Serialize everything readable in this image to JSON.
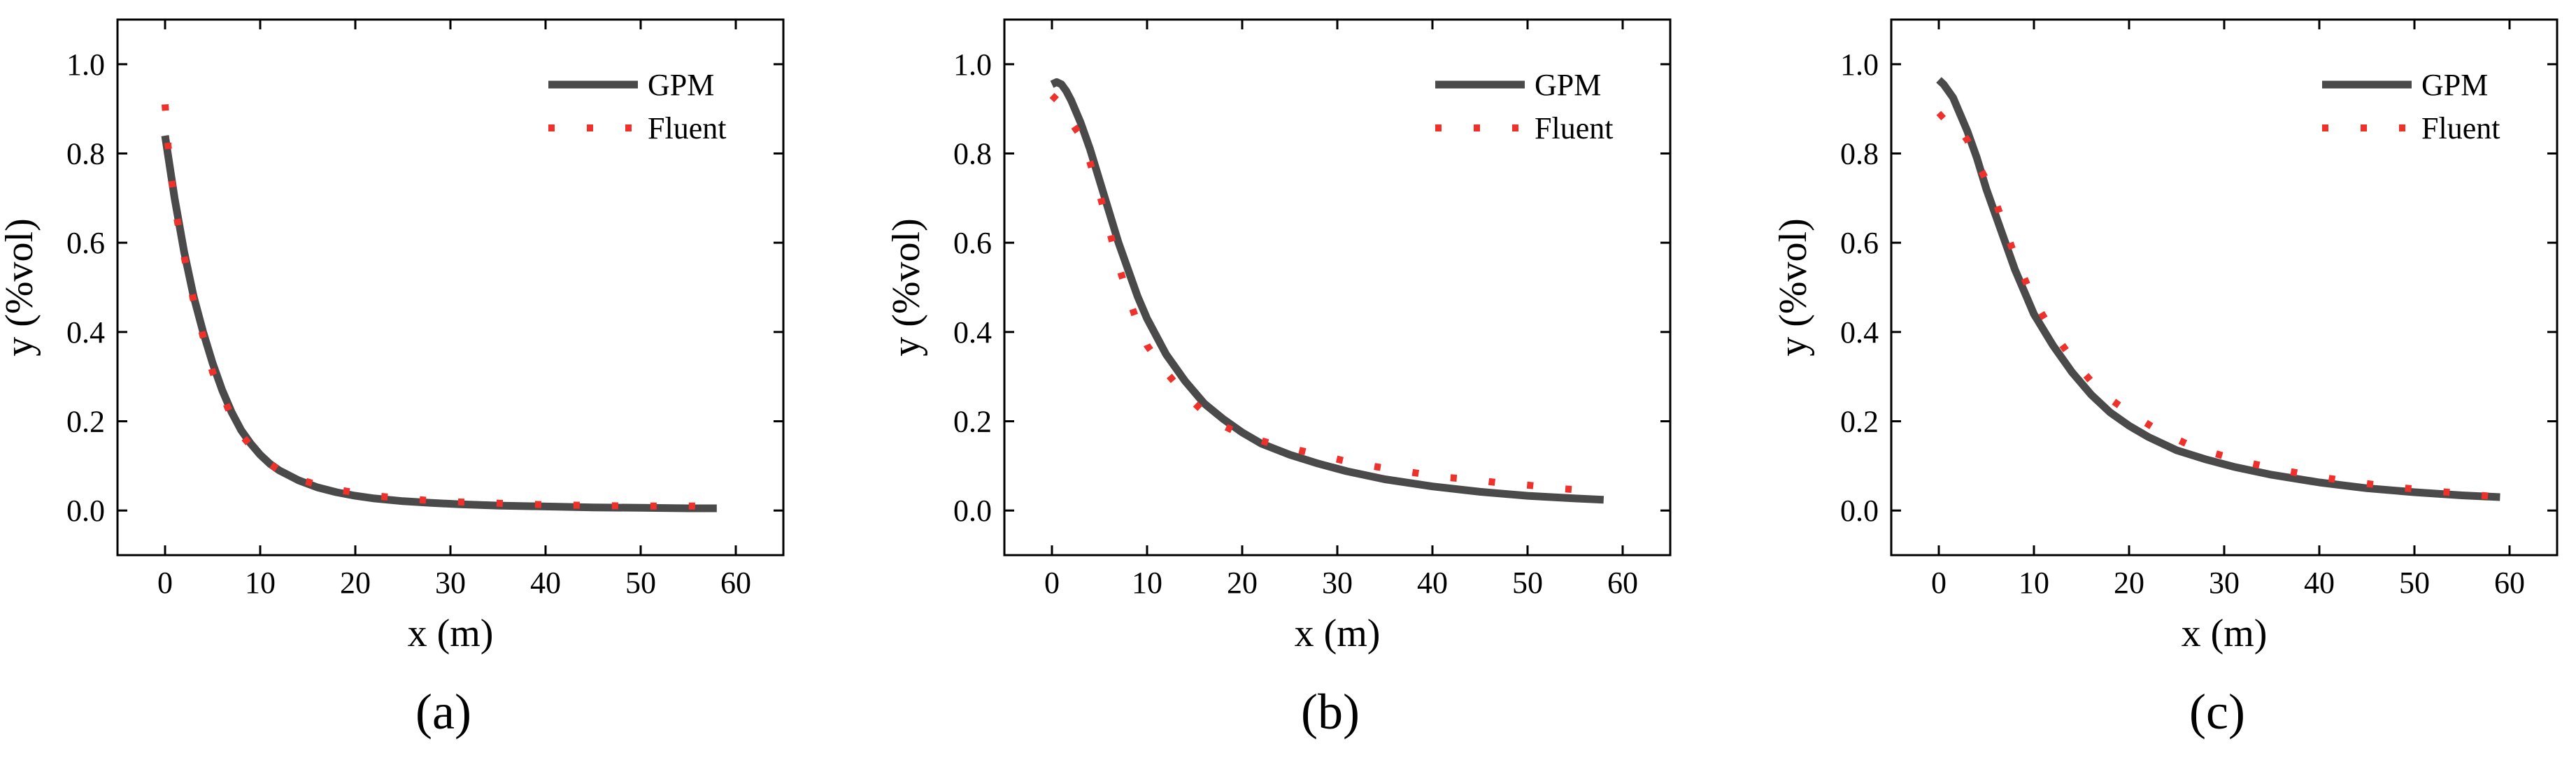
{
  "figure": {
    "colors": {
      "gpm": "#4a4a4a",
      "fluent": "#f0302a",
      "axis": "#000000"
    }
  },
  "chart_data": [
    {
      "type": "line",
      "panel_label": "(a)",
      "xlabel": "x (m)",
      "ylabel": "y (%vol)",
      "xlim": [
        -5,
        65
      ],
      "ylim": [
        -0.1,
        1.1
      ],
      "xticks": [
        0,
        10,
        20,
        30,
        40,
        50,
        60
      ],
      "xtick_labels": [
        "0",
        "10",
        "20",
        "30",
        "40",
        "50",
        "60"
      ],
      "yticks": [
        0.0,
        0.2,
        0.4,
        0.6,
        0.8,
        1.0
      ],
      "ytick_labels": [
        "0.0",
        "0.2",
        "0.4",
        "0.6",
        "0.8",
        "1.0"
      ],
      "legend": [
        "GPM",
        "Fluent"
      ],
      "legend_position": "top-right",
      "series": [
        {
          "name": "GPM",
          "style": "solid",
          "x": [
            0,
            0.5,
            1,
            1.5,
            2,
            3,
            4,
            5,
            6,
            7,
            8,
            9,
            10,
            11,
            12,
            14,
            16,
            18,
            20,
            22,
            25,
            28,
            31,
            35,
            40,
            45,
            50,
            55,
            58
          ],
          "y": [
            0.84,
            0.77,
            0.7,
            0.64,
            0.58,
            0.48,
            0.4,
            0.33,
            0.27,
            0.22,
            0.18,
            0.15,
            0.125,
            0.105,
            0.09,
            0.068,
            0.052,
            0.041,
            0.033,
            0.027,
            0.021,
            0.017,
            0.014,
            0.011,
            0.009,
            0.007,
            0.006,
            0.005,
            0.005
          ]
        },
        {
          "name": "Fluent",
          "style": "dotted",
          "x": [
            0,
            0.3,
            0.7,
            1.2,
            2,
            3,
            4,
            5,
            6,
            7,
            8,
            10,
            12,
            14,
            16,
            18,
            20,
            22,
            25,
            28,
            31,
            34,
            37,
            40,
            43,
            46,
            49,
            52,
            55,
            58
          ],
          "y": [
            0.91,
            0.82,
            0.74,
            0.66,
            0.57,
            0.47,
            0.39,
            0.31,
            0.26,
            0.21,
            0.17,
            0.12,
            0.09,
            0.07,
            0.058,
            0.047,
            0.04,
            0.033,
            0.027,
            0.022,
            0.019,
            0.017,
            0.015,
            0.013,
            0.012,
            0.011,
            0.01,
            0.01,
            0.01,
            0.01
          ]
        }
      ]
    },
    {
      "type": "line",
      "panel_label": "(b)",
      "xlabel": "x (m)",
      "ylabel": "y (%vol)",
      "xlim": [
        -5,
        65
      ],
      "ylim": [
        -0.1,
        1.1
      ],
      "xticks": [
        0,
        10,
        20,
        30,
        40,
        50,
        60
      ],
      "xtick_labels": [
        "0",
        "10",
        "20",
        "30",
        "40",
        "50",
        "60"
      ],
      "yticks": [
        0.0,
        0.2,
        0.4,
        0.6,
        0.8,
        1.0
      ],
      "ytick_labels": [
        "0.0",
        "0.2",
        "0.4",
        "0.6",
        "0.8",
        "1.0"
      ],
      "legend": [
        "GPM",
        "Fluent"
      ],
      "legend_position": "top-right",
      "series": [
        {
          "name": "GPM",
          "style": "solid",
          "x": [
            0,
            0.5,
            1,
            1.5,
            2,
            3,
            4,
            5,
            6,
            7,
            8,
            9,
            10,
            12,
            14,
            16,
            18,
            20,
            22,
            25,
            28,
            31,
            35,
            40,
            45,
            50,
            55,
            58
          ],
          "y": [
            0.955,
            0.96,
            0.955,
            0.94,
            0.92,
            0.87,
            0.81,
            0.74,
            0.67,
            0.6,
            0.54,
            0.48,
            0.43,
            0.35,
            0.29,
            0.24,
            0.205,
            0.175,
            0.15,
            0.125,
            0.105,
            0.088,
            0.07,
            0.054,
            0.042,
            0.033,
            0.027,
            0.024
          ]
        },
        {
          "name": "Fluent",
          "style": "dotted",
          "x": [
            0,
            0.5,
            1,
            2,
            3,
            4,
            5,
            6,
            7,
            8,
            9,
            10,
            12,
            14,
            16,
            18,
            20,
            23,
            26,
            29,
            32,
            35,
            38,
            41,
            44,
            47,
            50,
            53,
            56
          ],
          "y": [
            0.93,
            0.92,
            0.9,
            0.87,
            0.84,
            0.78,
            0.71,
            0.63,
            0.55,
            0.48,
            0.42,
            0.37,
            0.31,
            0.26,
            0.22,
            0.19,
            0.17,
            0.15,
            0.135,
            0.12,
            0.105,
            0.095,
            0.085,
            0.075,
            0.07,
            0.062,
            0.057,
            0.05,
            0.045
          ]
        }
      ]
    },
    {
      "type": "line",
      "panel_label": "(c)",
      "xlabel": "x (m)",
      "ylabel": "y (%vol)",
      "xlim": [
        -5,
        65
      ],
      "ylim": [
        -0.1,
        1.1
      ],
      "xticks": [
        0,
        10,
        20,
        30,
        40,
        50,
        60
      ],
      "xtick_labels": [
        "0",
        "10",
        "20",
        "30",
        "40",
        "50",
        "60"
      ],
      "yticks": [
        0.0,
        0.2,
        0.4,
        0.6,
        0.8,
        1.0
      ],
      "ytick_labels": [
        "0.0",
        "0.2",
        "0.4",
        "0.6",
        "0.8",
        "1.0"
      ],
      "legend": [
        "GPM",
        "Fluent"
      ],
      "legend_position": "top-right",
      "series": [
        {
          "name": "GPM",
          "style": "solid",
          "x": [
            0,
            0.5,
            1,
            1.5,
            2,
            3,
            4,
            5,
            6,
            7,
            8,
            9,
            10,
            12,
            14,
            16,
            18,
            20,
            22,
            25,
            28,
            31,
            35,
            40,
            45,
            50,
            55,
            59
          ],
          "y": [
            0.965,
            0.955,
            0.94,
            0.925,
            0.9,
            0.85,
            0.79,
            0.72,
            0.66,
            0.6,
            0.54,
            0.49,
            0.44,
            0.37,
            0.31,
            0.26,
            0.22,
            0.19,
            0.165,
            0.135,
            0.115,
            0.098,
            0.08,
            0.063,
            0.05,
            0.041,
            0.034,
            0.03
          ]
        },
        {
          "name": "Fluent",
          "style": "dotted",
          "x": [
            0,
            0.5,
            1,
            2,
            3,
            4,
            5,
            6,
            7,
            8,
            9,
            10,
            12,
            14,
            16,
            18,
            20,
            23,
            26,
            29,
            32,
            35,
            38,
            41,
            44,
            47,
            50,
            53,
            56,
            59
          ],
          "y": [
            0.88,
            0.89,
            0.88,
            0.86,
            0.83,
            0.78,
            0.74,
            0.69,
            0.63,
            0.57,
            0.52,
            0.47,
            0.4,
            0.34,
            0.29,
            0.25,
            0.22,
            0.18,
            0.15,
            0.128,
            0.11,
            0.095,
            0.083,
            0.072,
            0.063,
            0.055,
            0.048,
            0.042,
            0.036,
            0.03
          ]
        }
      ]
    }
  ]
}
